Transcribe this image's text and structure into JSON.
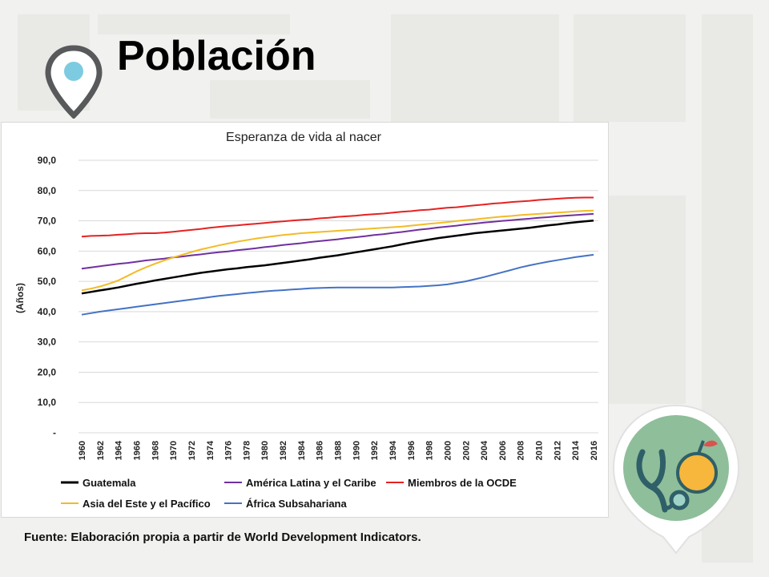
{
  "slide": {
    "title": "Población",
    "source": "Fuente: Elaboración propia a partir de World Development Indicators."
  },
  "icons": {
    "pin": "location-pin-icon",
    "badge": "stethoscope-orange-icon"
  },
  "colors": {
    "guatemala": "#000000",
    "america_latina": "#7030a0",
    "ocde": "#e52222",
    "asia": "#f2bb27",
    "africa": "#4472c4"
  },
  "chart_data": {
    "type": "line",
    "title": "Esperanza de vida al nacer",
    "ylabel": "(Años)",
    "xlabel": "",
    "ylim": [
      0,
      90
    ],
    "yticks": [
      "-",
      "10,0",
      "20,0",
      "30,0",
      "40,0",
      "50,0",
      "60,0",
      "70,0",
      "80,0",
      "90,0"
    ],
    "x": [
      1960,
      1961,
      1962,
      1963,
      1964,
      1965,
      1966,
      1967,
      1968,
      1969,
      1970,
      1971,
      1972,
      1973,
      1974,
      1975,
      1976,
      1977,
      1978,
      1979,
      1980,
      1981,
      1982,
      1983,
      1984,
      1985,
      1986,
      1987,
      1988,
      1989,
      1990,
      1991,
      1992,
      1993,
      1994,
      1995,
      1996,
      1997,
      1998,
      1999,
      2000,
      2001,
      2002,
      2003,
      2004,
      2005,
      2006,
      2007,
      2008,
      2009,
      2010,
      2011,
      2012,
      2013,
      2014,
      2015,
      2016
    ],
    "xticks": [
      "1960",
      "1962",
      "1964",
      "1966",
      "1968",
      "1970",
      "1972",
      "1974",
      "1976",
      "1978",
      "1980",
      "1982",
      "1984",
      "1986",
      "1988",
      "1990",
      "1992",
      "1994",
      "1996",
      "1998",
      "2000",
      "2002",
      "2004",
      "2006",
      "2008",
      "2010",
      "2012",
      "2014",
      "2016"
    ],
    "legend_position": "bottom",
    "series": [
      {
        "name": "Guatemala",
        "color": "#000000",
        "values": [
          46.0,
          46.5,
          47.0,
          47.5,
          48.0,
          48.6,
          49.2,
          49.7,
          50.3,
          50.8,
          51.3,
          51.8,
          52.3,
          52.8,
          53.2,
          53.6,
          54.0,
          54.3,
          54.7,
          55.0,
          55.3,
          55.7,
          56.1,
          56.5,
          56.9,
          57.3,
          57.8,
          58.2,
          58.6,
          59.1,
          59.6,
          60.1,
          60.6,
          61.1,
          61.6,
          62.2,
          62.8,
          63.3,
          63.8,
          64.3,
          64.7,
          65.1,
          65.5,
          65.9,
          66.2,
          66.5,
          66.8,
          67.1,
          67.4,
          67.7,
          68.1,
          68.5,
          68.8,
          69.2,
          69.5,
          69.8,
          70.1
        ]
      },
      {
        "name": "América Latina y el Caribe",
        "color": "#7030a0",
        "values": [
          54.2,
          54.6,
          55.0,
          55.4,
          55.8,
          56.1,
          56.5,
          56.9,
          57.2,
          57.5,
          57.9,
          58.2,
          58.6,
          58.9,
          59.3,
          59.6,
          59.9,
          60.3,
          60.6,
          60.9,
          61.3,
          61.6,
          62.0,
          62.3,
          62.6,
          63.0,
          63.3,
          63.6,
          63.9,
          64.3,
          64.6,
          64.9,
          65.3,
          65.6,
          66.0,
          66.3,
          66.7,
          67.1,
          67.4,
          67.8,
          68.1,
          68.4,
          68.8,
          69.1,
          69.4,
          69.7,
          70.0,
          70.2,
          70.5,
          70.7,
          71.0,
          71.2,
          71.5,
          71.7,
          71.9,
          72.1,
          72.3
        ]
      },
      {
        "name": "Miembros de la OCDE",
        "color": "#e52222",
        "values": [
          64.8,
          65.0,
          65.1,
          65.2,
          65.4,
          65.6,
          65.8,
          65.9,
          65.9,
          66.1,
          66.4,
          66.7,
          67.0,
          67.3,
          67.7,
          68.0,
          68.3,
          68.5,
          68.8,
          69.0,
          69.3,
          69.6,
          69.8,
          70.1,
          70.3,
          70.5,
          70.8,
          71.0,
          71.3,
          71.5,
          71.7,
          72.0,
          72.2,
          72.4,
          72.7,
          73.0,
          73.2,
          73.5,
          73.7,
          74.0,
          74.3,
          74.5,
          74.8,
          75.1,
          75.4,
          75.7,
          75.9,
          76.2,
          76.4,
          76.6,
          76.9,
          77.1,
          77.3,
          77.5,
          77.6,
          77.7,
          77.7
        ]
      },
      {
        "name": "Asia del Este y el Pacífico",
        "color": "#f2bb27",
        "values": [
          47.0,
          47.6,
          48.3,
          49.2,
          50.3,
          51.8,
          53.3,
          54.6,
          55.8,
          56.9,
          57.9,
          58.8,
          59.7,
          60.5,
          61.2,
          61.9,
          62.5,
          63.1,
          63.6,
          64.1,
          64.5,
          64.9,
          65.3,
          65.6,
          65.9,
          66.1,
          66.3,
          66.5,
          66.7,
          66.9,
          67.1,
          67.3,
          67.5,
          67.7,
          67.9,
          68.1,
          68.4,
          68.7,
          69.0,
          69.3,
          69.6,
          69.9,
          70.2,
          70.5,
          70.8,
          71.1,
          71.4,
          71.6,
          71.9,
          72.1,
          72.3,
          72.5,
          72.7,
          72.9,
          73.1,
          73.3,
          73.4
        ]
      },
      {
        "name": "África Subsahariana",
        "color": "#4472c4",
        "values": [
          39.0,
          39.5,
          40.0,
          40.4,
          40.8,
          41.2,
          41.6,
          42.0,
          42.4,
          42.8,
          43.2,
          43.6,
          44.0,
          44.4,
          44.8,
          45.2,
          45.5,
          45.8,
          46.1,
          46.4,
          46.7,
          46.9,
          47.1,
          47.3,
          47.5,
          47.7,
          47.8,
          47.9,
          48.0,
          48.0,
          48.0,
          48.0,
          48.0,
          48.0,
          48.0,
          48.1,
          48.2,
          48.3,
          48.5,
          48.7,
          49.0,
          49.5,
          50.0,
          50.7,
          51.4,
          52.2,
          53.0,
          53.8,
          54.6,
          55.3,
          55.9,
          56.5,
          57.0,
          57.5,
          58.0,
          58.4,
          58.8
        ]
      }
    ]
  }
}
